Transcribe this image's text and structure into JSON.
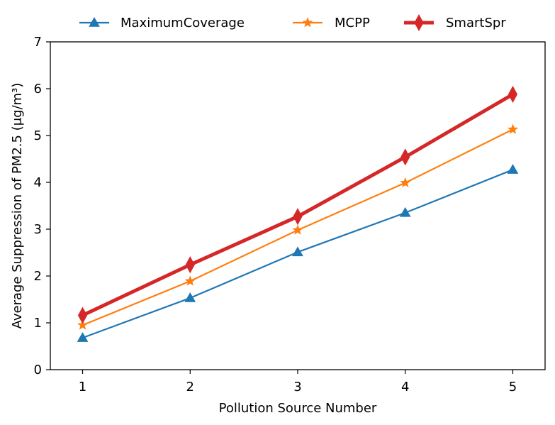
{
  "chart_data": {
    "type": "line",
    "title": "",
    "xlabel": "Pollution Source Number",
    "ylabel": "Average Suppression of PM2.5 (μg/m³)",
    "x": [
      1,
      2,
      3,
      4,
      5
    ],
    "xlim": [
      0.7,
      5.3
    ],
    "ylim": [
      0,
      7
    ],
    "xticks": [
      1,
      2,
      3,
      4,
      5
    ],
    "yticks": [
      0,
      1,
      2,
      3,
      4,
      5,
      6,
      7
    ],
    "grid": false,
    "legend_position": "top-center",
    "series": [
      {
        "name": "MaximumCoverage",
        "values": [
          0.68,
          1.53,
          2.51,
          3.35,
          4.27
        ],
        "color": "#1f77b4",
        "marker": "triangle"
      },
      {
        "name": "MCPP",
        "values": [
          0.95,
          1.89,
          2.98,
          3.99,
          5.13
        ],
        "color": "#ff7f0e",
        "marker": "star"
      },
      {
        "name": "SmartSpr",
        "values": [
          1.16,
          2.24,
          3.27,
          4.54,
          5.88
        ],
        "color": "#d62728",
        "marker": "thin-diamond"
      }
    ]
  }
}
